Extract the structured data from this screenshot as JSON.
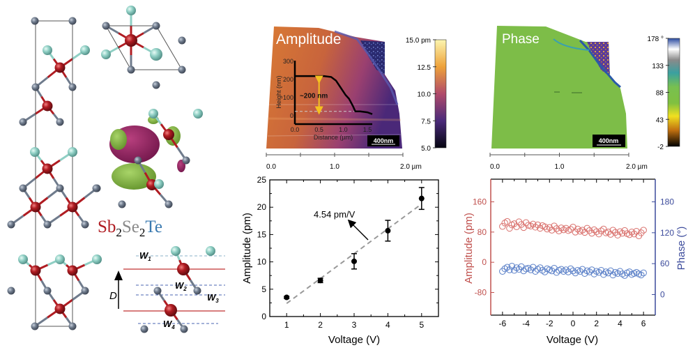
{
  "structure": {
    "formula": {
      "sb": "Sb",
      "sub1": "2",
      "se": "Se",
      "sub2": "2",
      "te": "Te"
    },
    "layer_labels": [
      {
        "w": "W",
        "sub": "1"
      },
      {
        "w": "W",
        "sub": "2"
      },
      {
        "w": "W",
        "sub": "3"
      },
      {
        "w": "W",
        "sub": "4"
      }
    ],
    "direction_label": "D",
    "colors": {
      "Sb": "#b01c22",
      "Se": "#6f7b8c",
      "Te": "#8fcfc4",
      "orbital_pos": "#8a1f5c",
      "orbital_neg": "#7fae3a"
    }
  },
  "afm": [
    {
      "title": "Amplitude",
      "colorbar_ticks": [
        "15.0 pm",
        "12.5",
        "10.0",
        "7.5",
        "5.0"
      ],
      "scale_bar": "400nm",
      "axis_ticks": [
        "0.0",
        "1.0",
        "2.0 µm"
      ]
    },
    {
      "title": "Phase",
      "colorbar_ticks": [
        "178 °",
        "133",
        "88",
        "43",
        "-2"
      ],
      "scale_bar": "400nm",
      "axis_ticks": [
        "0.0",
        "1.0",
        "2.0 µm"
      ]
    }
  ],
  "chart_data": [
    {
      "type": "line",
      "xlabel": "Distance (µm)",
      "ylabel": "Height (nm)",
      "xlim": [
        0,
        1.6
      ],
      "ylim": [
        -50,
        300
      ],
      "xticks": [
        "0.0",
        "0.5",
        "1.0",
        "1.5"
      ],
      "yticks": [
        "0",
        "100",
        "200",
        "300"
      ],
      "annotation": "~200 nm",
      "x": [
        0,
        0.3,
        0.6,
        0.75,
        0.85,
        0.95,
        1.05,
        1.12,
        1.2,
        1.25,
        1.35,
        1.5,
        1.6
      ],
      "y": [
        215,
        215,
        215,
        210,
        190,
        150,
        110,
        90,
        50,
        20,
        20,
        15,
        5
      ],
      "baseline": 20
    },
    {
      "type": "scatter",
      "xlabel": "Voltage (V)",
      "ylabel": "Amplitude (pm)",
      "xlim": [
        0.5,
        5.5
      ],
      "ylim": [
        0,
        25
      ],
      "xticks": [
        1,
        2,
        3,
        4,
        5
      ],
      "yticks": [
        0,
        5,
        10,
        15,
        20,
        25
      ],
      "x": [
        1,
        2,
        3,
        4,
        5
      ],
      "y": [
        3.5,
        6.6,
        10.1,
        15.7,
        21.6
      ],
      "error": [
        0.2,
        0.4,
        1.4,
        1.9,
        2.0
      ],
      "fit": {
        "x": [
          1,
          5
        ],
        "y": [
          2.4,
          20.6
        ],
        "label": "4.54 pm/V"
      }
    },
    {
      "type": "scatter",
      "xlabel": "Voltage (V)",
      "ylabel_left": "Amplitude (pm)",
      "ylabel_right": "Phase (°)",
      "xlim": [
        -7,
        7
      ],
      "ylim_left": [
        -140,
        220
      ],
      "ylim_right": [
        -40,
        224
      ],
      "xticks": [
        -6,
        -4,
        -2,
        0,
        2,
        4,
        6
      ],
      "yticks_left": [
        -80,
        0,
        80,
        160
      ],
      "yticks_right": [
        0,
        60,
        120,
        180
      ],
      "colors": {
        "amplitude": "#c0504d",
        "phase": "#3b4a9b"
      },
      "x": [
        -6,
        -5.8,
        -5.6,
        -5.4,
        -5.2,
        -5,
        -4.8,
        -4.6,
        -4.4,
        -4.2,
        -4,
        -3.8,
        -3.6,
        -3.4,
        -3.2,
        -3,
        -2.8,
        -2.6,
        -2.4,
        -2.2,
        -2,
        -1.8,
        -1.6,
        -1.4,
        -1.2,
        -1,
        -0.8,
        -0.6,
        -0.4,
        -0.2,
        0,
        0.2,
        0.4,
        0.6,
        0.8,
        1,
        1.2,
        1.4,
        1.6,
        1.8,
        2,
        2.2,
        2.4,
        2.6,
        2.8,
        3,
        3.2,
        3.4,
        3.6,
        3.8,
        4,
        4.2,
        4.4,
        4.6,
        4.8,
        5,
        5.2,
        5.4,
        5.6,
        5.8,
        6
      ],
      "series": [
        {
          "axis": "left",
          "values": [
            95,
            104,
            108,
            90,
            99,
            102,
            94,
            107,
            100,
            92,
            105,
            98,
            96,
            101,
            93,
            99,
            90,
            97,
            94,
            88,
            92,
            85,
            96,
            89,
            83,
            91,
            86,
            90,
            84,
            87,
            93,
            80,
            88,
            82,
            85,
            79,
            90,
            84,
            77,
            86,
            81,
            75,
            83,
            88,
            78,
            80,
            74,
            85,
            79,
            72,
            81,
            77,
            84,
            76,
            73,
            80,
            75,
            82,
            70,
            78,
            85
          ]
        },
        {
          "axis": "right",
          "values": [
            45,
            50,
            53,
            48,
            55,
            47,
            52,
            49,
            54,
            46,
            50,
            51,
            48,
            53,
            45,
            49,
            52,
            47,
            44,
            50,
            48,
            46,
            51,
            43,
            47,
            49,
            45,
            48,
            44,
            50,
            46,
            42,
            47,
            45,
            49,
            41,
            46,
            44,
            48,
            40,
            45,
            43,
            47,
            39,
            44,
            42,
            46,
            38,
            43,
            41,
            45,
            40,
            37,
            42,
            44,
            39,
            41,
            43,
            40,
            38,
            42
          ]
        }
      ]
    }
  ]
}
